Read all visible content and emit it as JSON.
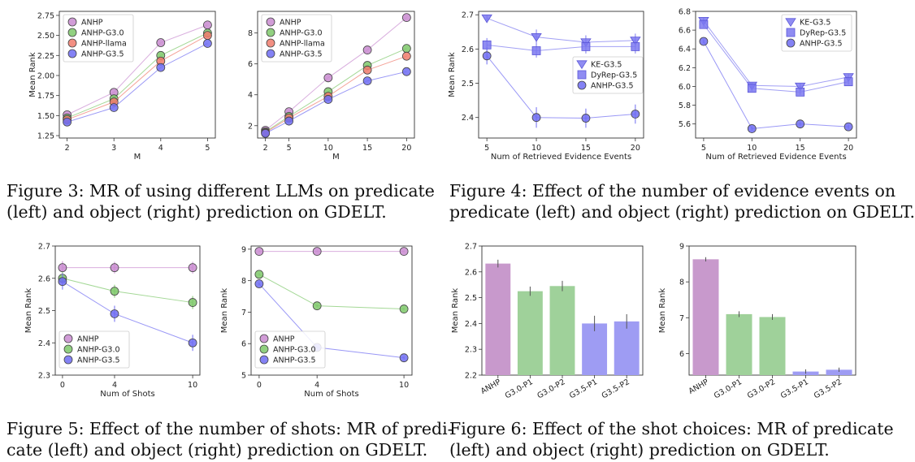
{
  "colors": {
    "ANHP": "#c98bd0",
    "ANHP-G3.0": "#7ec86a",
    "ANHP-llama": "#f07b6c",
    "ANHP-G3.5": "#6f6cf2",
    "KE-G3.5": "#7b78f0",
    "DyRep-G3.5": "#7b78f0",
    "bar-ANHP": "#c899cc",
    "bar-G3.0": "#9fd19a",
    "bar-G3.5": "#9e9cf3"
  },
  "captions": [
    {
      "lines": [
        "Figure 3:  MR of using different LLMs on predicate",
        "(left) and object (right) prediction on GDELT."
      ]
    },
    {
      "lines": [
        "Figure 4: Effect of the number of evidence events on",
        "predicate (left) and object (right) prediction on GDELT."
      ]
    },
    {
      "lines": [
        "Figure 5: Effect of the number of shots: MR of predi-",
        "cate (left) and object (right) prediction on GDELT."
      ]
    },
    {
      "lines": [
        "Figure 6: Effect of the shot choices: MR of predicate",
        "(left) and object (right) prediction on GDELT."
      ]
    }
  ],
  "chart_data": [
    {
      "type": "line",
      "xlabel": "M",
      "ylabel": "Mean Rank",
      "x": [
        2,
        3,
        4,
        5
      ],
      "xticks": [
        "2",
        "3",
        "4",
        "5"
      ],
      "ylim": [
        1.22,
        2.8
      ],
      "yticks": [
        "1.25",
        "1.50",
        "1.75",
        "2.00",
        "2.25",
        "2.50",
        "2.75"
      ],
      "legend": "top-left",
      "series": [
        {
          "name": "ANHP",
          "marker": "circle",
          "values": [
            1.51,
            1.79,
            2.41,
            2.63
          ]
        },
        {
          "name": "ANHP-G3.0",
          "marker": "circle",
          "values": [
            1.47,
            1.71,
            2.25,
            2.53
          ]
        },
        {
          "name": "ANHP-llama",
          "marker": "circle",
          "values": [
            1.45,
            1.67,
            2.18,
            2.5
          ]
        },
        {
          "name": "ANHP-G3.5",
          "marker": "circle",
          "values": [
            1.42,
            1.6,
            2.1,
            2.4
          ]
        }
      ]
    },
    {
      "type": "line",
      "xlabel": "M",
      "ylabel": "",
      "x": [
        2,
        5,
        10,
        15,
        20
      ],
      "xticks": [
        "2",
        "5",
        "10",
        "15",
        "20"
      ],
      "ylim": [
        1.2,
        9.4
      ],
      "yticks": [
        "2",
        "4",
        "6",
        "8"
      ],
      "legend": "top-left",
      "series": [
        {
          "name": "ANHP",
          "marker": "circle",
          "values": [
            1.7,
            2.9,
            5.1,
            6.9,
            9.0
          ]
        },
        {
          "name": "ANHP-G3.0",
          "marker": "circle",
          "values": [
            1.6,
            2.6,
            4.2,
            5.9,
            7.0
          ]
        },
        {
          "name": "ANHP-llama",
          "marker": "circle",
          "values": [
            1.55,
            2.5,
            3.9,
            5.6,
            6.5
          ]
        },
        {
          "name": "ANHP-G3.5",
          "marker": "circle",
          "values": [
            1.5,
            2.3,
            3.7,
            4.9,
            5.5
          ]
        }
      ]
    },
    {
      "type": "line",
      "xlabel": "Num of Retrieved Evidence Events",
      "ylabel": "Mean Rank",
      "x": [
        5,
        10,
        15,
        20
      ],
      "xticks": [
        "5",
        "10",
        "15",
        "20"
      ],
      "ylim": [
        2.34,
        2.71
      ],
      "yticks": [
        "2.4",
        "2.5",
        "2.6",
        "2.7"
      ],
      "legend": "right",
      "series": [
        {
          "name": "KE-G3.5",
          "marker": "triangle",
          "values": [
            2.69,
            2.635,
            2.62,
            2.625
          ],
          "err": [
            0.008,
            0.022,
            0.02,
            0.02
          ]
        },
        {
          "name": "DyRep-G3.5",
          "marker": "square",
          "values": [
            2.612,
            2.595,
            2.607,
            2.607
          ],
          "err": [
            0.02,
            0.02,
            0.02,
            0.02
          ]
        },
        {
          "name": "ANHP-G3.5",
          "marker": "circle",
          "values": [
            2.58,
            2.4,
            2.398,
            2.41
          ],
          "err": [
            0.025,
            0.03,
            0.028,
            0.028
          ]
        }
      ]
    },
    {
      "type": "line",
      "xlabel": "Num of Retrieved Evidence Events",
      "ylabel": "",
      "x": [
        5,
        10,
        15,
        20
      ],
      "xticks": [
        "5",
        "10",
        "15",
        "20"
      ],
      "ylim": [
        5.45,
        6.8
      ],
      "yticks": [
        "5.6",
        "5.8",
        "6.0",
        "6.2",
        "6.4",
        "6.6",
        "6.8"
      ],
      "legend": "top-right",
      "series": [
        {
          "name": "KE-G3.5",
          "marker": "triangle",
          "values": [
            6.7,
            6.01,
            6.0,
            6.1
          ],
          "err": [
            0.03,
            0.03,
            0.03,
            0.03
          ]
        },
        {
          "name": "DyRep-G3.5",
          "marker": "square",
          "values": [
            6.66,
            5.98,
            5.94,
            6.05
          ],
          "err": [
            0.03,
            0.03,
            0.03,
            0.03
          ]
        },
        {
          "name": "ANHP-G3.5",
          "marker": "circle",
          "values": [
            6.48,
            5.55,
            5.6,
            5.57
          ],
          "err": [
            0.02,
            0.02,
            0.02,
            0.02
          ]
        }
      ]
    },
    {
      "type": "line",
      "xlabel": "Num of Shots",
      "ylabel": "Mean Rank",
      "x": [
        0,
        4,
        10
      ],
      "xticks": [
        "0",
        "4",
        "10"
      ],
      "ylim": [
        2.3,
        2.7
      ],
      "yticks": [
        "2.3",
        "2.4",
        "2.5",
        "2.6",
        "2.7"
      ],
      "legend": "bottom-left",
      "series": [
        {
          "name": "ANHP",
          "marker": "circle",
          "values": [
            2.633,
            2.633,
            2.633
          ],
          "err": [
            0.02,
            0.018,
            0.018
          ]
        },
        {
          "name": "ANHP-G3.0",
          "marker": "circle",
          "values": [
            2.6,
            2.56,
            2.525
          ],
          "err": [
            0.02,
            0.02,
            0.02
          ]
        },
        {
          "name": "ANHP-G3.5",
          "marker": "circle",
          "values": [
            2.59,
            2.49,
            2.4
          ],
          "err": [
            0.025,
            0.025,
            0.025
          ]
        }
      ]
    },
    {
      "type": "line",
      "xlabel": "Num of Shots",
      "ylabel": "Mean Rank",
      "x": [
        0,
        4,
        10
      ],
      "xticks": [
        "0",
        "4",
        "10"
      ],
      "ylim": [
        5,
        9.1
      ],
      "yticks": [
        "5",
        "6",
        "7",
        "8",
        "9"
      ],
      "legend": "bottom-left",
      "series": [
        {
          "name": "ANHP",
          "marker": "circle",
          "values": [
            8.93,
            8.93,
            8.93
          ],
          "err": [
            0.03,
            0.03,
            0.03
          ]
        },
        {
          "name": "ANHP-G3.0",
          "marker": "circle",
          "values": [
            8.2,
            7.2,
            7.1
          ],
          "err": [
            0.04,
            0.04,
            0.04
          ]
        },
        {
          "name": "ANHP-G3.5",
          "marker": "circle",
          "values": [
            7.9,
            5.88,
            5.55
          ],
          "err": [
            0.04,
            0.04,
            0.04
          ]
        }
      ]
    },
    {
      "type": "bar",
      "xlabel": "",
      "ylabel": "Mean Rank",
      "categories": [
        "ANHP",
        "G3.0-P1",
        "G3.0-P2",
        "G3.5-P1",
        "G3.5-P2"
      ],
      "groups": [
        "ANHP",
        "G3.0",
        "G3.0",
        "G3.5",
        "G3.5"
      ],
      "values": [
        2.632,
        2.525,
        2.545,
        2.4,
        2.408
      ],
      "err": [
        0.015,
        0.018,
        0.02,
        0.03,
        0.028
      ],
      "ylim": [
        2.2,
        2.7
      ],
      "yticks": [
        "2.2",
        "2.3",
        "2.4",
        "2.5",
        "2.6",
        "2.7"
      ]
    },
    {
      "type": "bar",
      "xlabel": "",
      "ylabel": "Mean Rank",
      "categories": [
        "ANHP",
        "G3.0-P1",
        "G3.0-P2",
        "G3.5-P1",
        "G3.5-P2"
      ],
      "groups": [
        "ANHP",
        "G3.0",
        "G3.0",
        "G3.5",
        "G3.5"
      ],
      "values": [
        8.63,
        7.1,
        7.02,
        5.5,
        5.55
      ],
      "err": [
        0.06,
        0.08,
        0.08,
        0.06,
        0.06
      ],
      "ylim": [
        5.4,
        9.0
      ],
      "yticks": [
        "6",
        "7",
        "8",
        "9"
      ]
    }
  ]
}
